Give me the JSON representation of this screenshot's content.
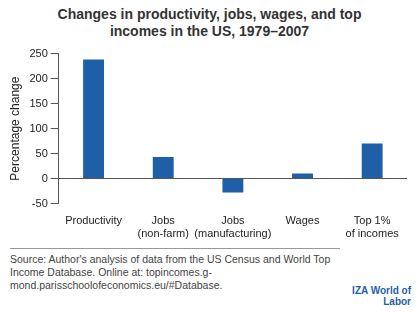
{
  "chart_data": {
    "type": "bar",
    "title": "Changes in productivity, jobs, wages, and top incomes in the US, 1979–2007",
    "y_label": "Percentage change",
    "categories": [
      [
        "Productivity"
      ],
      [
        "Jobs",
        "(non-farm)"
      ],
      [
        "Jobs",
        "(manufacturing)"
      ],
      [
        "Wages"
      ],
      [
        "Top 1%",
        "of incomes"
      ]
    ],
    "values": [
      238,
      43,
      -28,
      10,
      70
    ],
    "color": "#1f5fa8",
    "ylim": [
      -50,
      250
    ],
    "yticks": [
      -50,
      0,
      50,
      100,
      150,
      200,
      250
    ],
    "grid": false,
    "source": "Source: Author's analysis of data from the US Census and World Top Income Database. Online at: topincomes.g-mond.parisschoolofeconomics.eu/#Database.",
    "logo": "IZA World of Labor"
  }
}
